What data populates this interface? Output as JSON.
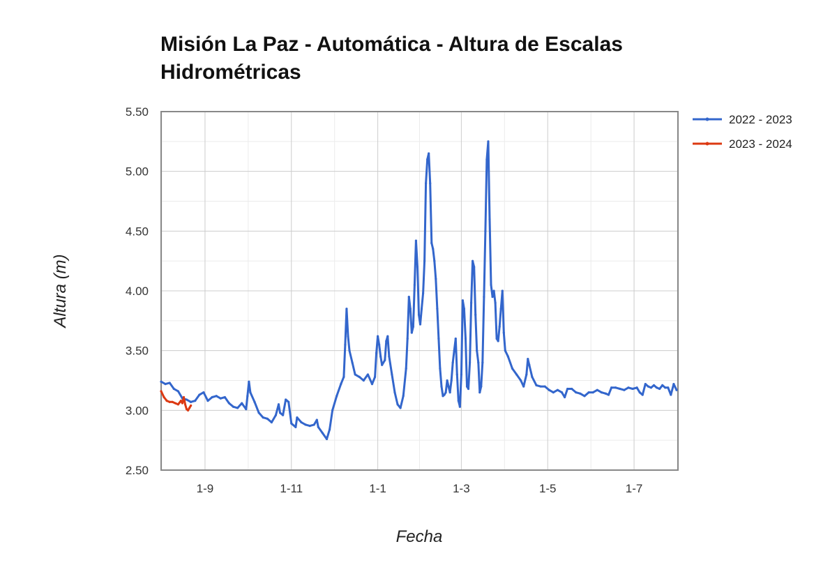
{
  "chart_data": {
    "type": "line",
    "title": "Misión La Paz - Automática - Altura de Escalas Hidrométricas",
    "xlabel": "Fecha",
    "ylabel": "Altura (m)",
    "xlim": [
      0,
      365
    ],
    "ylim": [
      2.5,
      5.5
    ],
    "y_ticks": [
      "2.50",
      "3.00",
      "3.50",
      "4.00",
      "4.50",
      "5.00",
      "5.50"
    ],
    "x_ticks": [
      {
        "label": "1-9",
        "x": 31
      },
      {
        "label": "1-11",
        "x": 92
      },
      {
        "label": "1-1",
        "x": 153
      },
      {
        "label": "1-3",
        "x": 212
      },
      {
        "label": "1-5",
        "x": 273
      },
      {
        "label": "1-7",
        "x": 334
      }
    ],
    "grid": true,
    "legend_position": "right",
    "series": [
      {
        "name": "2022 - 2023",
        "color": "#3366cc",
        "points": [
          [
            0,
            3.24
          ],
          [
            3,
            3.22
          ],
          [
            6,
            3.23
          ],
          [
            9,
            3.18
          ],
          [
            12,
            3.16
          ],
          [
            15,
            3.1
          ],
          [
            18,
            3.09
          ],
          [
            21,
            3.07
          ],
          [
            24,
            3.08
          ],
          [
            27,
            3.13
          ],
          [
            30,
            3.15
          ],
          [
            33,
            3.08
          ],
          [
            36,
            3.11
          ],
          [
            39,
            3.12
          ],
          [
            42,
            3.1
          ],
          [
            45,
            3.11
          ],
          [
            48,
            3.06
          ],
          [
            51,
            3.03
          ],
          [
            54,
            3.02
          ],
          [
            57,
            3.06
          ],
          [
            60,
            3.01
          ],
          [
            61,
            3.12
          ],
          [
            62,
            3.24
          ],
          [
            63,
            3.15
          ],
          [
            66,
            3.07
          ],
          [
            69,
            2.98
          ],
          [
            72,
            2.94
          ],
          [
            75,
            2.93
          ],
          [
            78,
            2.9
          ],
          [
            81,
            2.96
          ],
          [
            83,
            3.05
          ],
          [
            84,
            2.98
          ],
          [
            86,
            2.96
          ],
          [
            88,
            3.09
          ],
          [
            90,
            3.07
          ],
          [
            92,
            2.89
          ],
          [
            95,
            2.86
          ],
          [
            96,
            2.94
          ],
          [
            99,
            2.9
          ],
          [
            102,
            2.88
          ],
          [
            105,
            2.87
          ],
          [
            108,
            2.88
          ],
          [
            110,
            2.92
          ],
          [
            111,
            2.86
          ],
          [
            114,
            2.81
          ],
          [
            117,
            2.76
          ],
          [
            119,
            2.84
          ],
          [
            121,
            3.0
          ],
          [
            124,
            3.12
          ],
          [
            127,
            3.22
          ],
          [
            129,
            3.28
          ],
          [
            130,
            3.55
          ],
          [
            131,
            3.85
          ],
          [
            132,
            3.62
          ],
          [
            133,
            3.5
          ],
          [
            135,
            3.4
          ],
          [
            137,
            3.3
          ],
          [
            140,
            3.28
          ],
          [
            143,
            3.25
          ],
          [
            146,
            3.3
          ],
          [
            149,
            3.22
          ],
          [
            151,
            3.28
          ],
          [
            152,
            3.48
          ],
          [
            153,
            3.62
          ],
          [
            154,
            3.55
          ],
          [
            155,
            3.45
          ],
          [
            156,
            3.38
          ],
          [
            158,
            3.42
          ],
          [
            159,
            3.58
          ],
          [
            160,
            3.62
          ],
          [
            161,
            3.45
          ],
          [
            163,
            3.3
          ],
          [
            165,
            3.15
          ],
          [
            167,
            3.05
          ],
          [
            169,
            3.02
          ],
          [
            171,
            3.12
          ],
          [
            173,
            3.35
          ],
          [
            174,
            3.6
          ],
          [
            175,
            3.95
          ],
          [
            176,
            3.85
          ],
          [
            177,
            3.65
          ],
          [
            178,
            3.7
          ],
          [
            179,
            4.05
          ],
          [
            180,
            4.42
          ],
          [
            181,
            4.2
          ],
          [
            182,
            3.8
          ],
          [
            183,
            3.72
          ],
          [
            184,
            3.85
          ],
          [
            185,
            3.98
          ],
          [
            186,
            4.25
          ],
          [
            187,
            4.9
          ],
          [
            188,
            5.1
          ],
          [
            189,
            5.15
          ],
          [
            190,
            4.9
          ],
          [
            191,
            4.4
          ],
          [
            192,
            4.35
          ],
          [
            193,
            4.25
          ],
          [
            194,
            4.1
          ],
          [
            195,
            3.85
          ],
          [
            196,
            3.6
          ],
          [
            197,
            3.35
          ],
          [
            198,
            3.2
          ],
          [
            199,
            3.12
          ],
          [
            200,
            3.13
          ],
          [
            201,
            3.15
          ],
          [
            202,
            3.25
          ],
          [
            203,
            3.2
          ],
          [
            204,
            3.15
          ],
          [
            205,
            3.25
          ],
          [
            206,
            3.4
          ],
          [
            207,
            3.5
          ],
          [
            208,
            3.6
          ],
          [
            209,
            3.3
          ],
          [
            210,
            3.08
          ],
          [
            211,
            3.03
          ],
          [
            212,
            3.3
          ],
          [
            213,
            3.92
          ],
          [
            214,
            3.85
          ],
          [
            215,
            3.6
          ],
          [
            216,
            3.2
          ],
          [
            217,
            3.18
          ],
          [
            218,
            3.4
          ],
          [
            219,
            3.9
          ],
          [
            220,
            4.25
          ],
          [
            221,
            4.2
          ],
          [
            222,
            3.8
          ],
          [
            223,
            3.5
          ],
          [
            224,
            3.4
          ],
          [
            225,
            3.15
          ],
          [
            226,
            3.2
          ],
          [
            227,
            3.4
          ],
          [
            228,
            3.95
          ],
          [
            229,
            4.5
          ],
          [
            230,
            5.1
          ],
          [
            231,
            5.25
          ],
          [
            232,
            4.6
          ],
          [
            233,
            4.05
          ],
          [
            234,
            3.95
          ],
          [
            235,
            4.0
          ],
          [
            236,
            3.9
          ],
          [
            237,
            3.6
          ],
          [
            238,
            3.58
          ],
          [
            239,
            3.7
          ],
          [
            240,
            3.85
          ],
          [
            241,
            4.0
          ],
          [
            242,
            3.65
          ],
          [
            243,
            3.5
          ],
          [
            245,
            3.45
          ],
          [
            248,
            3.35
          ],
          [
            251,
            3.3
          ],
          [
            254,
            3.25
          ],
          [
            256,
            3.2
          ],
          [
            258,
            3.3
          ],
          [
            259,
            3.43
          ],
          [
            260,
            3.38
          ],
          [
            262,
            3.28
          ],
          [
            265,
            3.21
          ],
          [
            268,
            3.2
          ],
          [
            271,
            3.2
          ],
          [
            274,
            3.17
          ],
          [
            277,
            3.15
          ],
          [
            280,
            3.17
          ],
          [
            283,
            3.15
          ],
          [
            285,
            3.11
          ],
          [
            287,
            3.18
          ],
          [
            290,
            3.18
          ],
          [
            293,
            3.15
          ],
          [
            296,
            3.14
          ],
          [
            299,
            3.12
          ],
          [
            302,
            3.15
          ],
          [
            305,
            3.15
          ],
          [
            308,
            3.17
          ],
          [
            311,
            3.15
          ],
          [
            314,
            3.14
          ],
          [
            316,
            3.13
          ],
          [
            318,
            3.19
          ],
          [
            321,
            3.19
          ],
          [
            324,
            3.18
          ],
          [
            327,
            3.17
          ],
          [
            330,
            3.19
          ],
          [
            333,
            3.18
          ],
          [
            336,
            3.19
          ],
          [
            338,
            3.15
          ],
          [
            340,
            3.13
          ],
          [
            342,
            3.22
          ],
          [
            344,
            3.2
          ],
          [
            346,
            3.19
          ],
          [
            348,
            3.21
          ],
          [
            350,
            3.19
          ],
          [
            352,
            3.18
          ],
          [
            354,
            3.21
          ],
          [
            356,
            3.19
          ],
          [
            358,
            3.19
          ],
          [
            360,
            3.13
          ],
          [
            362,
            3.22
          ],
          [
            364,
            3.17
          ]
        ]
      },
      {
        "name": "2023 - 2024",
        "color": "#dc3912",
        "points": [
          [
            0,
            3.16
          ],
          [
            2,
            3.11
          ],
          [
            4,
            3.08
          ],
          [
            6,
            3.07
          ],
          [
            8,
            3.07
          ],
          [
            10,
            3.06
          ],
          [
            12,
            3.05
          ],
          [
            14,
            3.08
          ],
          [
            15,
            3.06
          ],
          [
            16,
            3.11
          ],
          [
            17,
            3.05
          ],
          [
            18,
            3.01
          ],
          [
            19,
            3.0
          ],
          [
            20,
            3.02
          ],
          [
            21,
            3.04
          ]
        ]
      }
    ]
  }
}
